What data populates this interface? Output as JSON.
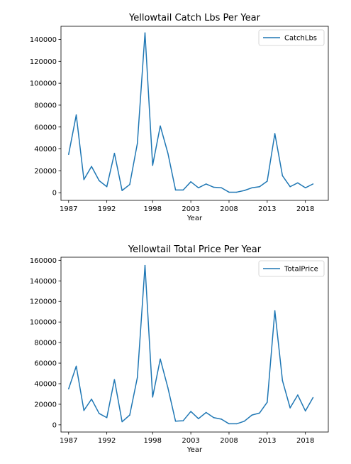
{
  "chart_data": [
    {
      "type": "line",
      "title": "Yellowtail Catch Lbs Per Year",
      "xlabel": "Year",
      "ylabel": "",
      "legend_position": "top-right",
      "grid": false,
      "color": "#1f77b4",
      "xlim": [
        1986,
        2021
      ],
      "ylim": [
        -7000,
        152000
      ],
      "xticks": [
        "1987",
        "1992",
        "1998",
        "2003",
        "2008",
        "2013",
        "2018"
      ],
      "yticks": [
        "0",
        "20000",
        "40000",
        "60000",
        "80000",
        "100000",
        "120000",
        "140000"
      ],
      "series": [
        {
          "name": "CatchLbs",
          "x": [
            1987,
            1988,
            1989,
            1990,
            1991,
            1992,
            1993,
            1994,
            1995,
            1996,
            1997,
            1998,
            1999,
            2000,
            2001,
            2002,
            2003,
            2004,
            2005,
            2006,
            2007,
            2008,
            2009,
            2010,
            2011,
            2012,
            2013,
            2014,
            2015,
            2016,
            2017,
            2018,
            2019,
            2020
          ],
          "values": [
            35000,
            71000,
            12000,
            24000,
            11000,
            5500,
            36000,
            2000,
            7500,
            45000,
            146000,
            25000,
            61000,
            36000,
            2500,
            2500,
            10000,
            4500,
            8000,
            5000,
            4500,
            500,
            500,
            2000,
            4500,
            5500,
            10500,
            54000,
            15500,
            5500,
            9000,
            4500,
            8000,
            null
          ]
        }
      ]
    },
    {
      "type": "line",
      "title": "Yellowtail Total Price Per Year",
      "xlabel": "Year",
      "ylabel": "",
      "legend_position": "top-right",
      "grid": false,
      "color": "#1f77b4",
      "xlim": [
        1986,
        2021
      ],
      "ylim": [
        -7000,
        163000
      ],
      "xticks": [
        "1987",
        "1992",
        "1998",
        "2003",
        "2008",
        "2013",
        "2018"
      ],
      "yticks": [
        "0",
        "20000",
        "40000",
        "60000",
        "80000",
        "100000",
        "120000",
        "140000",
        "160000"
      ],
      "series": [
        {
          "name": "TotalPrice",
          "x": [
            1987,
            1988,
            1989,
            1990,
            1991,
            1992,
            1993,
            1994,
            1995,
            1996,
            1997,
            1998,
            1999,
            2000,
            2001,
            2002,
            2003,
            2004,
            2005,
            2006,
            2007,
            2008,
            2009,
            2010,
            2011,
            2012,
            2013,
            2014,
            2015,
            2016,
            2017,
            2018,
            2019,
            2020
          ],
          "values": [
            35000,
            57000,
            14000,
            25000,
            11000,
            7000,
            44000,
            3000,
            9500,
            46000,
            155000,
            27000,
            64000,
            36000,
            3500,
            4000,
            13000,
            6000,
            12000,
            7000,
            5500,
            1000,
            1000,
            3500,
            9500,
            11500,
            22000,
            111000,
            43000,
            16500,
            29000,
            13500,
            26500,
            null
          ]
        }
      ]
    }
  ]
}
